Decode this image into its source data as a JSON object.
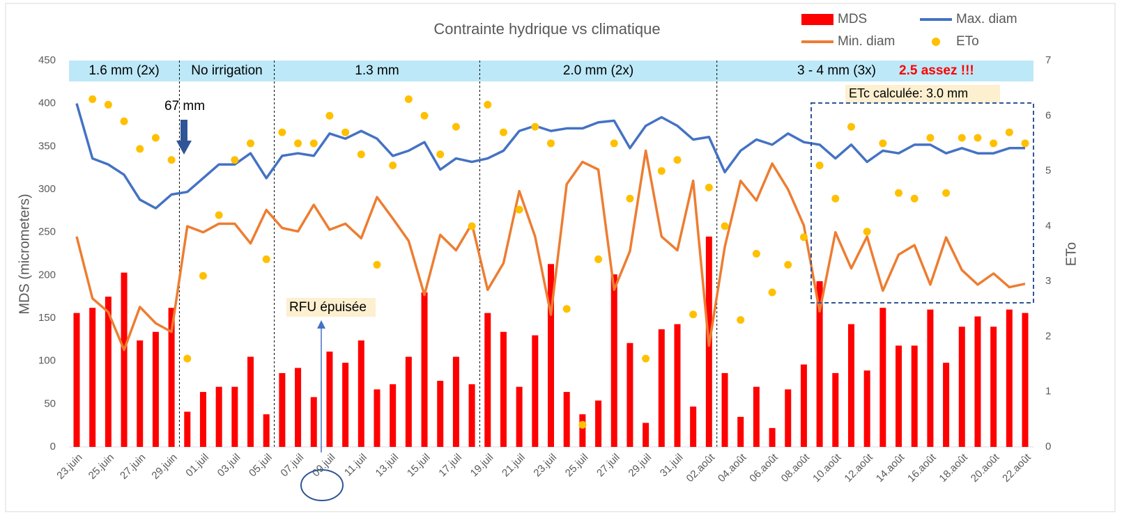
{
  "chart_data": {
    "type": "combo",
    "title": "Contrainte hydrique vs climatique",
    "y_label": "MDS (micrometers)",
    "y2_label": "ETo",
    "categories": [
      "23.juin",
      null,
      "25.juin",
      null,
      "27.juin",
      null,
      "29.juin",
      null,
      "01.juil",
      null,
      "03.juil",
      null,
      "05.juil",
      null,
      "07.juil",
      null,
      "09.juil",
      null,
      "11.juil",
      null,
      "13.juil",
      null,
      "15.juil",
      null,
      "17.juil",
      null,
      "19.juil",
      null,
      "21.juil",
      null,
      "23.juil",
      null,
      "25.juil",
      null,
      "27.juil",
      null,
      "29.juil",
      null,
      "31.juil",
      null,
      "02.août",
      null,
      "04.août",
      null,
      "06.août",
      null,
      "08.août",
      null,
      "10.août",
      null,
      "12.août",
      null,
      "14.août",
      null,
      "16.août",
      null,
      "18.août",
      null,
      "20.août",
      null,
      "22.août"
    ],
    "series": [
      {
        "name": "MDS",
        "type": "bar",
        "color": "#ff0000",
        "values": [
          156,
          162,
          175,
          203,
          124,
          134,
          162,
          41,
          64,
          70,
          70,
          105,
          38,
          86,
          92,
          58,
          111,
          98,
          124,
          67,
          73,
          105,
          180,
          77,
          105,
          73,
          156,
          134,
          70,
          130,
          213,
          64,
          38,
          54,
          201,
          121,
          28,
          137,
          143,
          47,
          245,
          86,
          35,
          70,
          22,
          67,
          96,
          193,
          86,
          143,
          89,
          162,
          118,
          118,
          160,
          98,
          140,
          152,
          140,
          160,
          156
        ]
      },
      {
        "name": "Max. diam",
        "type": "line",
        "color": "#4472c4",
        "values": [
          400,
          336,
          329,
          317,
          288,
          278,
          294,
          297,
          313,
          329,
          329,
          342,
          313,
          339,
          342,
          339,
          365,
          359,
          368,
          359,
          339,
          345,
          355,
          323,
          336,
          332,
          336,
          345,
          368,
          374,
          368,
          371,
          371,
          378,
          380,
          348,
          374,
          384,
          374,
          358,
          361,
          320,
          345,
          358,
          352,
          365,
          355,
          352,
          336,
          352,
          332,
          345,
          342,
          352,
          352,
          342,
          348,
          342,
          342,
          348,
          348
        ]
      },
      {
        "name": "Min. diam",
        "type": "line",
        "color": "#ed7d31",
        "values": [
          245,
          173,
          157,
          113,
          163,
          144,
          134,
          257,
          250,
          260,
          260,
          237,
          276,
          255,
          251,
          282,
          253,
          260,
          243,
          291,
          266,
          240,
          177,
          247,
          229,
          260,
          183,
          214,
          298,
          245,
          154,
          306,
          332,
          323,
          183,
          228,
          345,
          245,
          229,
          310,
          118,
          233,
          310,
          287,
          330,
          300,
          258,
          158,
          250,
          208,
          245,
          182,
          224,
          235,
          189,
          244,
          206,
          189,
          202,
          186,
          190
        ]
      },
      {
        "name": "ETo",
        "type": "scatter",
        "axis": "y2",
        "color": "#ffc000",
        "values": [
          null,
          6.3,
          6.2,
          5.9,
          5.4,
          5.6,
          5.2,
          1.6,
          3.1,
          4.2,
          5.2,
          5.5,
          3.4,
          5.7,
          5.5,
          5.5,
          6.0,
          5.7,
          5.3,
          3.3,
          5.1,
          6.3,
          6.0,
          5.3,
          5.8,
          4.0,
          6.2,
          5.7,
          4.3,
          5.8,
          5.5,
          2.5,
          0.4,
          3.4,
          5.5,
          4.5,
          1.6,
          5.0,
          5.2,
          2.4,
          4.7,
          4.0,
          2.3,
          3.5,
          2.8,
          3.3,
          3.8,
          5.1,
          4.5,
          5.8,
          3.9,
          5.5,
          4.6,
          4.5,
          5.6,
          4.6,
          5.6,
          5.6,
          5.5,
          5.7,
          5.5
        ]
      }
    ],
    "ylim": [
      0,
      450
    ],
    "yticks": [
      0,
      50,
      100,
      150,
      200,
      250,
      300,
      350,
      400,
      450
    ],
    "y2lim": [
      0,
      7
    ],
    "y2ticks": [
      0,
      1,
      2,
      3,
      4,
      5,
      6,
      7
    ],
    "legend": "top-right",
    "periods": [
      "1.6 mm (2x)",
      "No irrigation",
      "1.3 mm",
      "2.0 mm (2x)",
      "3 - 4 mm (3x)"
    ],
    "warning": "2.5 assez !!!",
    "irrigation_note": "67 mm",
    "rfu_note": "RFU épuisée",
    "etc_note": "ETc calculée: 3.0 mm"
  }
}
